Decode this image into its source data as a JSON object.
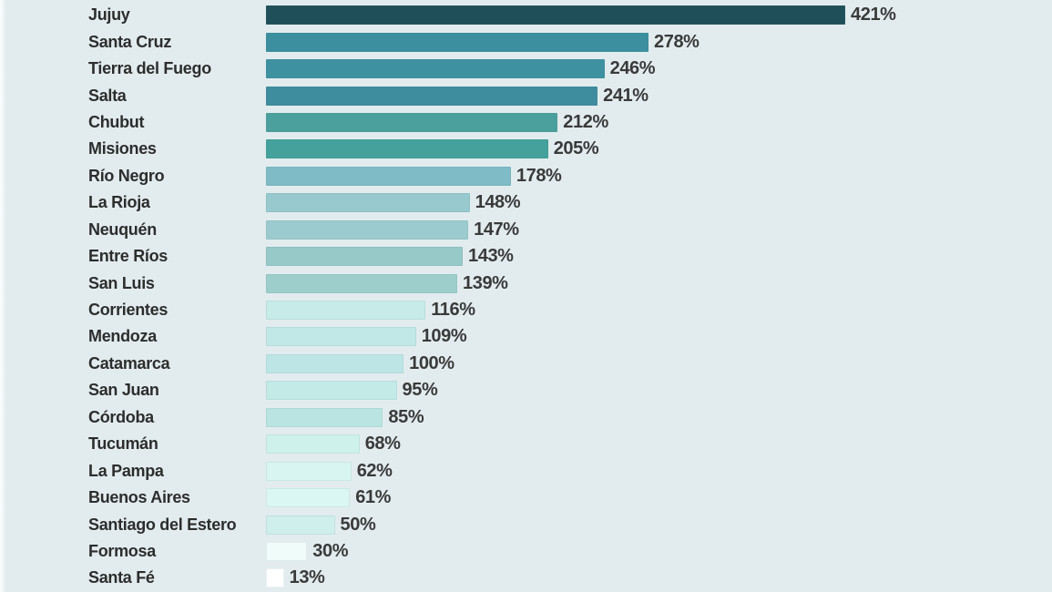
{
  "chart_data": {
    "type": "bar",
    "orientation": "horizontal",
    "title": "",
    "xlabel": "",
    "ylabel": "",
    "unit": "%",
    "xlim": [
      0,
      421
    ],
    "grid": false,
    "legend": false,
    "background_color": "#e2ecee",
    "label_color": "#2d2d2d",
    "value_color": "#3a3a3a",
    "categories": [
      "Jujuy",
      "Santa Cruz",
      "Tierra del Fuego",
      "Salta",
      "Chubut",
      "Misiones",
      "Río Negro",
      "La Rioja",
      "Neuquén",
      "Entre Ríos",
      "San Luis",
      "Corrientes",
      "Mendoza",
      "Catamarca",
      "San Juan",
      "Córdoba",
      "Tucumán",
      "La Pampa",
      "Buenos Aires",
      "Santiago del Estero",
      "Formosa",
      "Santa Fé"
    ],
    "values": [
      421,
      278,
      246,
      241,
      212,
      205,
      178,
      148,
      147,
      143,
      139,
      116,
      109,
      100,
      95,
      85,
      68,
      62,
      61,
      50,
      30,
      13
    ],
    "value_labels": [
      "421%",
      "278%",
      "246%",
      "241%",
      "212%",
      "205%",
      "178%",
      "148%",
      "147%",
      "143%",
      "139%",
      "116%",
      "109%",
      "100%",
      "95%",
      "85%",
      "68%",
      "62%",
      "61%",
      "50%",
      "30%",
      "13%"
    ],
    "bar_colors": [
      "#1f4f58",
      "#3b8f9e",
      "#3e91a1",
      "#3e8d9e",
      "#4ba09d",
      "#44a19b",
      "#7ebbc7",
      "#98c9cf",
      "#9bcbcf",
      "#96c9c8",
      "#9dcecc",
      "#c7ebe9",
      "#c2e7e7",
      "#bee5e5",
      "#c3eae7",
      "#bae4e2",
      "#cff1ec",
      "#d8f5f1",
      "#dbf7f3",
      "#ceefeb",
      "#f0fcf9",
      "#ffffff"
    ]
  }
}
